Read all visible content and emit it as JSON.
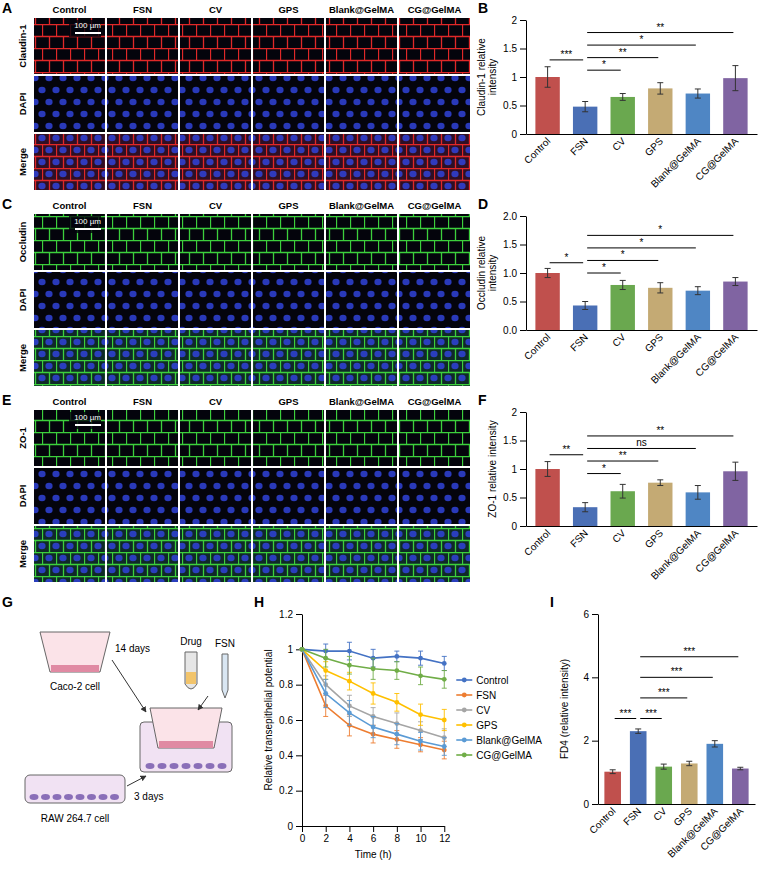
{
  "chart_data": [
    {
      "type": "bar",
      "panel": "B",
      "y_label": "Claudin-1 relative intensity",
      "categories": [
        "Control",
        "FSN",
        "CV",
        "GPS",
        "Blank@GelMA",
        "CG@GelMA"
      ],
      "values": [
        1.0,
        0.48,
        0.65,
        0.8,
        0.71,
        0.98
      ],
      "errors": [
        0.18,
        0.09,
        0.06,
        0.1,
        0.08,
        0.22
      ],
      "colors": [
        "#c0504d",
        "#4a6fb5",
        "#6aa84f",
        "#c4aa74",
        "#4f86c4",
        "#8064a2"
      ],
      "ylim": [
        0,
        2
      ],
      "yticks": [
        0,
        0.5,
        1,
        1.5,
        2
      ],
      "annotations": [
        {
          "text": "***",
          "between": [
            "Control",
            "FSN"
          ],
          "y": 1.3
        },
        {
          "text": "*",
          "between": [
            "FSN",
            "CV"
          ],
          "y": 1.12
        },
        {
          "text": "**",
          "between": [
            "FSN",
            "GPS"
          ],
          "y": 1.34
        },
        {
          "text": "*",
          "between": [
            "FSN",
            "Blank@GelMA"
          ],
          "y": 1.56
        },
        {
          "text": "**",
          "between": [
            "FSN",
            "CG@GelMA"
          ],
          "y": 1.78
        }
      ]
    },
    {
      "type": "bar",
      "panel": "D",
      "y_label": "Occludin relative intensity",
      "categories": [
        "Control",
        "FSN",
        "CV",
        "GPS",
        "Blank@GelMA",
        "CG@GelMA"
      ],
      "values": [
        1.0,
        0.43,
        0.79,
        0.74,
        0.69,
        0.85
      ],
      "errors": [
        0.08,
        0.07,
        0.08,
        0.09,
        0.07,
        0.07
      ],
      "colors": [
        "#c0504d",
        "#4a6fb5",
        "#6aa84f",
        "#c4aa74",
        "#4f86c4",
        "#8064a2"
      ],
      "ylim": [
        0,
        2
      ],
      "yticks": [
        {
          "value": 0,
          "label": "0.0"
        },
        {
          "value": 0.5,
          "label": "0.5"
        },
        {
          "value": 1,
          "label": "1.0"
        },
        {
          "value": 1.5,
          "label": "1.5"
        },
        {
          "value": 2,
          "label": "2.0"
        }
      ],
      "annotations": [
        {
          "text": "*",
          "between": [
            "Control",
            "FSN"
          ],
          "y": 1.18
        },
        {
          "text": "*",
          "between": [
            "FSN",
            "CV"
          ],
          "y": 1.0
        },
        {
          "text": "*",
          "between": [
            "FSN",
            "GPS"
          ],
          "y": 1.22
        },
        {
          "text": "*",
          "between": [
            "FSN",
            "Blank@GelMA"
          ],
          "y": 1.44
        },
        {
          "text": "*",
          "between": [
            "FSN",
            "CG@GelMA"
          ],
          "y": 1.66
        }
      ]
    },
    {
      "type": "bar",
      "panel": "F",
      "y_label": "ZO-1 relative intensity",
      "categories": [
        "Control",
        "FSN",
        "CV",
        "GPS",
        "Blank@GelMA",
        "CG@GelMA"
      ],
      "values": [
        1.0,
        0.33,
        0.61,
        0.76,
        0.59,
        0.96
      ],
      "errors": [
        0.13,
        0.08,
        0.12,
        0.05,
        0.12,
        0.16
      ],
      "colors": [
        "#c0504d",
        "#4a6fb5",
        "#6aa84f",
        "#c4aa74",
        "#4f86c4",
        "#8064a2"
      ],
      "ylim": [
        0,
        2
      ],
      "yticks": [
        0,
        0.5,
        1,
        1.5,
        2
      ],
      "annotations": [
        {
          "text": "**",
          "between": [
            "Control",
            "FSN"
          ],
          "y": 1.25
        },
        {
          "text": "*",
          "between": [
            "FSN",
            "CV"
          ],
          "y": 0.92
        },
        {
          "text": "**",
          "between": [
            "FSN",
            "GPS"
          ],
          "y": 1.14
        },
        {
          "text": "ns",
          "between": [
            "FSN",
            "Blank@GelMA"
          ],
          "y": 1.36
        },
        {
          "text": "**",
          "between": [
            "FSN",
            "CG@GelMA"
          ],
          "y": 1.58
        }
      ]
    },
    {
      "type": "line",
      "panel": "H",
      "x_label": "Time (h)",
      "y_label": "Relative transepithelial potential",
      "x": [
        0,
        2,
        4,
        6,
        8,
        10,
        12
      ],
      "xlim": [
        0,
        12
      ],
      "xticks": [
        0,
        2,
        4,
        6,
        8,
        10,
        12
      ],
      "ylim": [
        0,
        1.2
      ],
      "yticks": [
        0,
        0.2,
        0.4,
        0.6,
        0.8,
        1,
        1.2
      ],
      "legend": "right",
      "series": [
        {
          "name": "Control",
          "color": "#4472c4",
          "marker": "circle",
          "values": [
            1,
            0.99,
            0.99,
            0.95,
            0.96,
            0.95,
            0.92
          ],
          "errors": [
            0,
            0.04,
            0.05,
            0.05,
            0.03,
            0.04,
            0.04
          ]
        },
        {
          "name": "FSN",
          "color": "#ed7d31",
          "marker": "circle",
          "values": [
            1,
            0.68,
            0.57,
            0.52,
            0.49,
            0.46,
            0.43
          ],
          "errors": [
            0,
            0.06,
            0.06,
            0.05,
            0.05,
            0.04,
            0.05
          ]
        },
        {
          "name": "CV",
          "color": "#a5a5a5",
          "marker": "circle",
          "values": [
            1,
            0.8,
            0.68,
            0.62,
            0.58,
            0.54,
            0.5
          ],
          "errors": [
            0,
            0.05,
            0.06,
            0.05,
            0.06,
            0.05,
            0.05
          ]
        },
        {
          "name": "GPS",
          "color": "#ffc000",
          "marker": "circle",
          "values": [
            1,
            0.88,
            0.82,
            0.75,
            0.7,
            0.63,
            0.6
          ],
          "errors": [
            0,
            0.05,
            0.05,
            0.06,
            0.05,
            0.06,
            0.06
          ]
        },
        {
          "name": "Blank@GelMA",
          "color": "#5b9bd5",
          "marker": "circle",
          "values": [
            1,
            0.75,
            0.64,
            0.56,
            0.52,
            0.48,
            0.45
          ],
          "errors": [
            0,
            0.08,
            0.07,
            0.06,
            0.06,
            0.05,
            0.05
          ]
        },
        {
          "name": "CG@GelMA",
          "color": "#70ad47",
          "marker": "circle",
          "values": [
            1,
            0.95,
            0.91,
            0.89,
            0.88,
            0.85,
            0.83
          ],
          "errors": [
            0,
            0.05,
            0.05,
            0.06,
            0.05,
            0.05,
            0.05
          ]
        }
      ]
    },
    {
      "type": "bar",
      "panel": "I",
      "y_label": "FD4 (relative intensity)",
      "categories": [
        "Control",
        "FSN",
        "CV",
        "GPS",
        "Blank@GelMA",
        "CG@GelMA"
      ],
      "values": [
        1.02,
        2.3,
        1.18,
        1.28,
        1.9,
        1.12
      ],
      "errors": [
        0.06,
        0.07,
        0.08,
        0.07,
        0.1,
        0.04
      ],
      "colors": [
        "#c0504d",
        "#4a6fb5",
        "#6aa84f",
        "#c4aa74",
        "#4f86c4",
        "#8064a2"
      ],
      "ylim": [
        0,
        6
      ],
      "yticks": [
        0,
        2,
        4,
        6
      ],
      "annotations": [
        {
          "text": "***",
          "between": [
            "Control",
            "FSN"
          ],
          "y": 2.7
        },
        {
          "text": "***",
          "between": [
            "FSN",
            "CV"
          ],
          "y": 2.7
        },
        {
          "text": "***",
          "between": [
            "FSN",
            "GPS"
          ],
          "y": 3.35
        },
        {
          "text": "***",
          "between": [
            "FSN",
            "Blank@GelMA"
          ],
          "y": 4.0
        },
        {
          "text": "***",
          "between": [
            "FSN",
            "CG@GelMA"
          ],
          "y": 4.65
        }
      ]
    }
  ],
  "image_panels": [
    {
      "panel": "A",
      "rows": [
        "Claudin-1",
        "DAPI",
        "Merge"
      ],
      "columns": [
        "Control",
        "FSN",
        "CV",
        "GPS",
        "Blank@GelMA",
        "CG@GelMA"
      ],
      "scale_bar": "100 µm",
      "colors": [
        "#e02828",
        "#2f42d8",
        "#b0306a"
      ]
    },
    {
      "panel": "C",
      "rows": [
        "Occludin",
        "DAPI",
        "Merge"
      ],
      "columns": [
        "Control",
        "FSN",
        "CV",
        "GPS",
        "Blank@GelMA",
        "CG@GelMA"
      ],
      "scale_bar": "100 µm",
      "colors": [
        "#3ccf3c",
        "#2f42d8",
        "#2f9a78"
      ]
    },
    {
      "panel": "E",
      "rows": [
        "ZO-1",
        "DAPI",
        "Merge"
      ],
      "columns": [
        "Control",
        "FSN",
        "CV",
        "GPS",
        "Blank@GelMA",
        "CG@GelMA"
      ],
      "scale_bar": "100 µm",
      "colors": [
        "#3ccf3c",
        "#2f42d8",
        "#2f9a78"
      ]
    }
  ],
  "schematic": {
    "panel": "G",
    "caco2": "Caco-2 cell",
    "caco2_days": "14 days",
    "raw": "RAW 264.7 cell",
    "raw_days": "3 days",
    "fsn": "FSN",
    "drug": "Drug"
  }
}
